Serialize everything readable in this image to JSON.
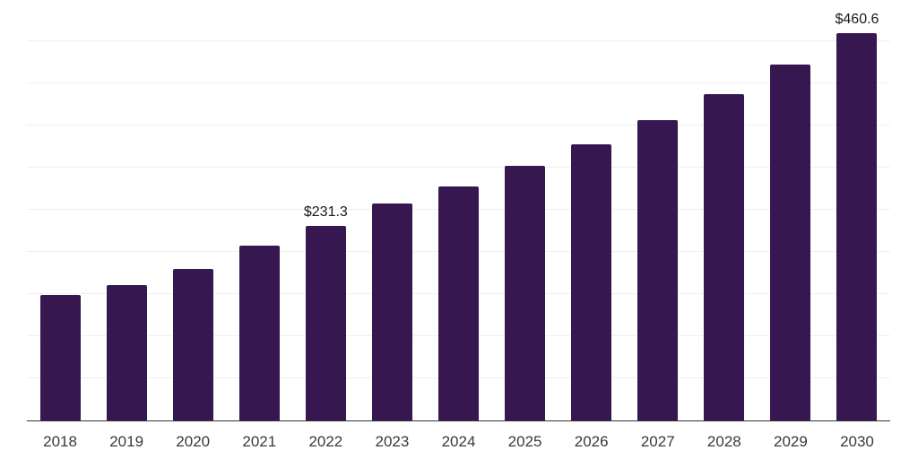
{
  "chart_data": {
    "type": "bar",
    "title": "",
    "xlabel": "",
    "ylabel": "",
    "categories": [
      "2018",
      "2019",
      "2020",
      "2021",
      "2022",
      "2023",
      "2024",
      "2025",
      "2026",
      "2027",
      "2028",
      "2029",
      "2030"
    ],
    "values": [
      148.6,
      160.3,
      179.9,
      207.3,
      231.3,
      257.5,
      278.5,
      302.6,
      328.3,
      356.8,
      387.4,
      423.0,
      460.6
    ],
    "data_labels": {
      "2022": "$231.3",
      "2030": "$460.6"
    },
    "currency_prefix": "$",
    "ylim": [
      0,
      500
    ],
    "grid_step": 50,
    "grid": "horizontal",
    "legend_position": "none",
    "colors": {
      "bar": "#361750",
      "gridline": "#f0f0f0",
      "axis_line": "#333333",
      "tick_label": "#3a3a3a",
      "value_label": "#1a1a1a",
      "background": "#ffffff"
    }
  }
}
